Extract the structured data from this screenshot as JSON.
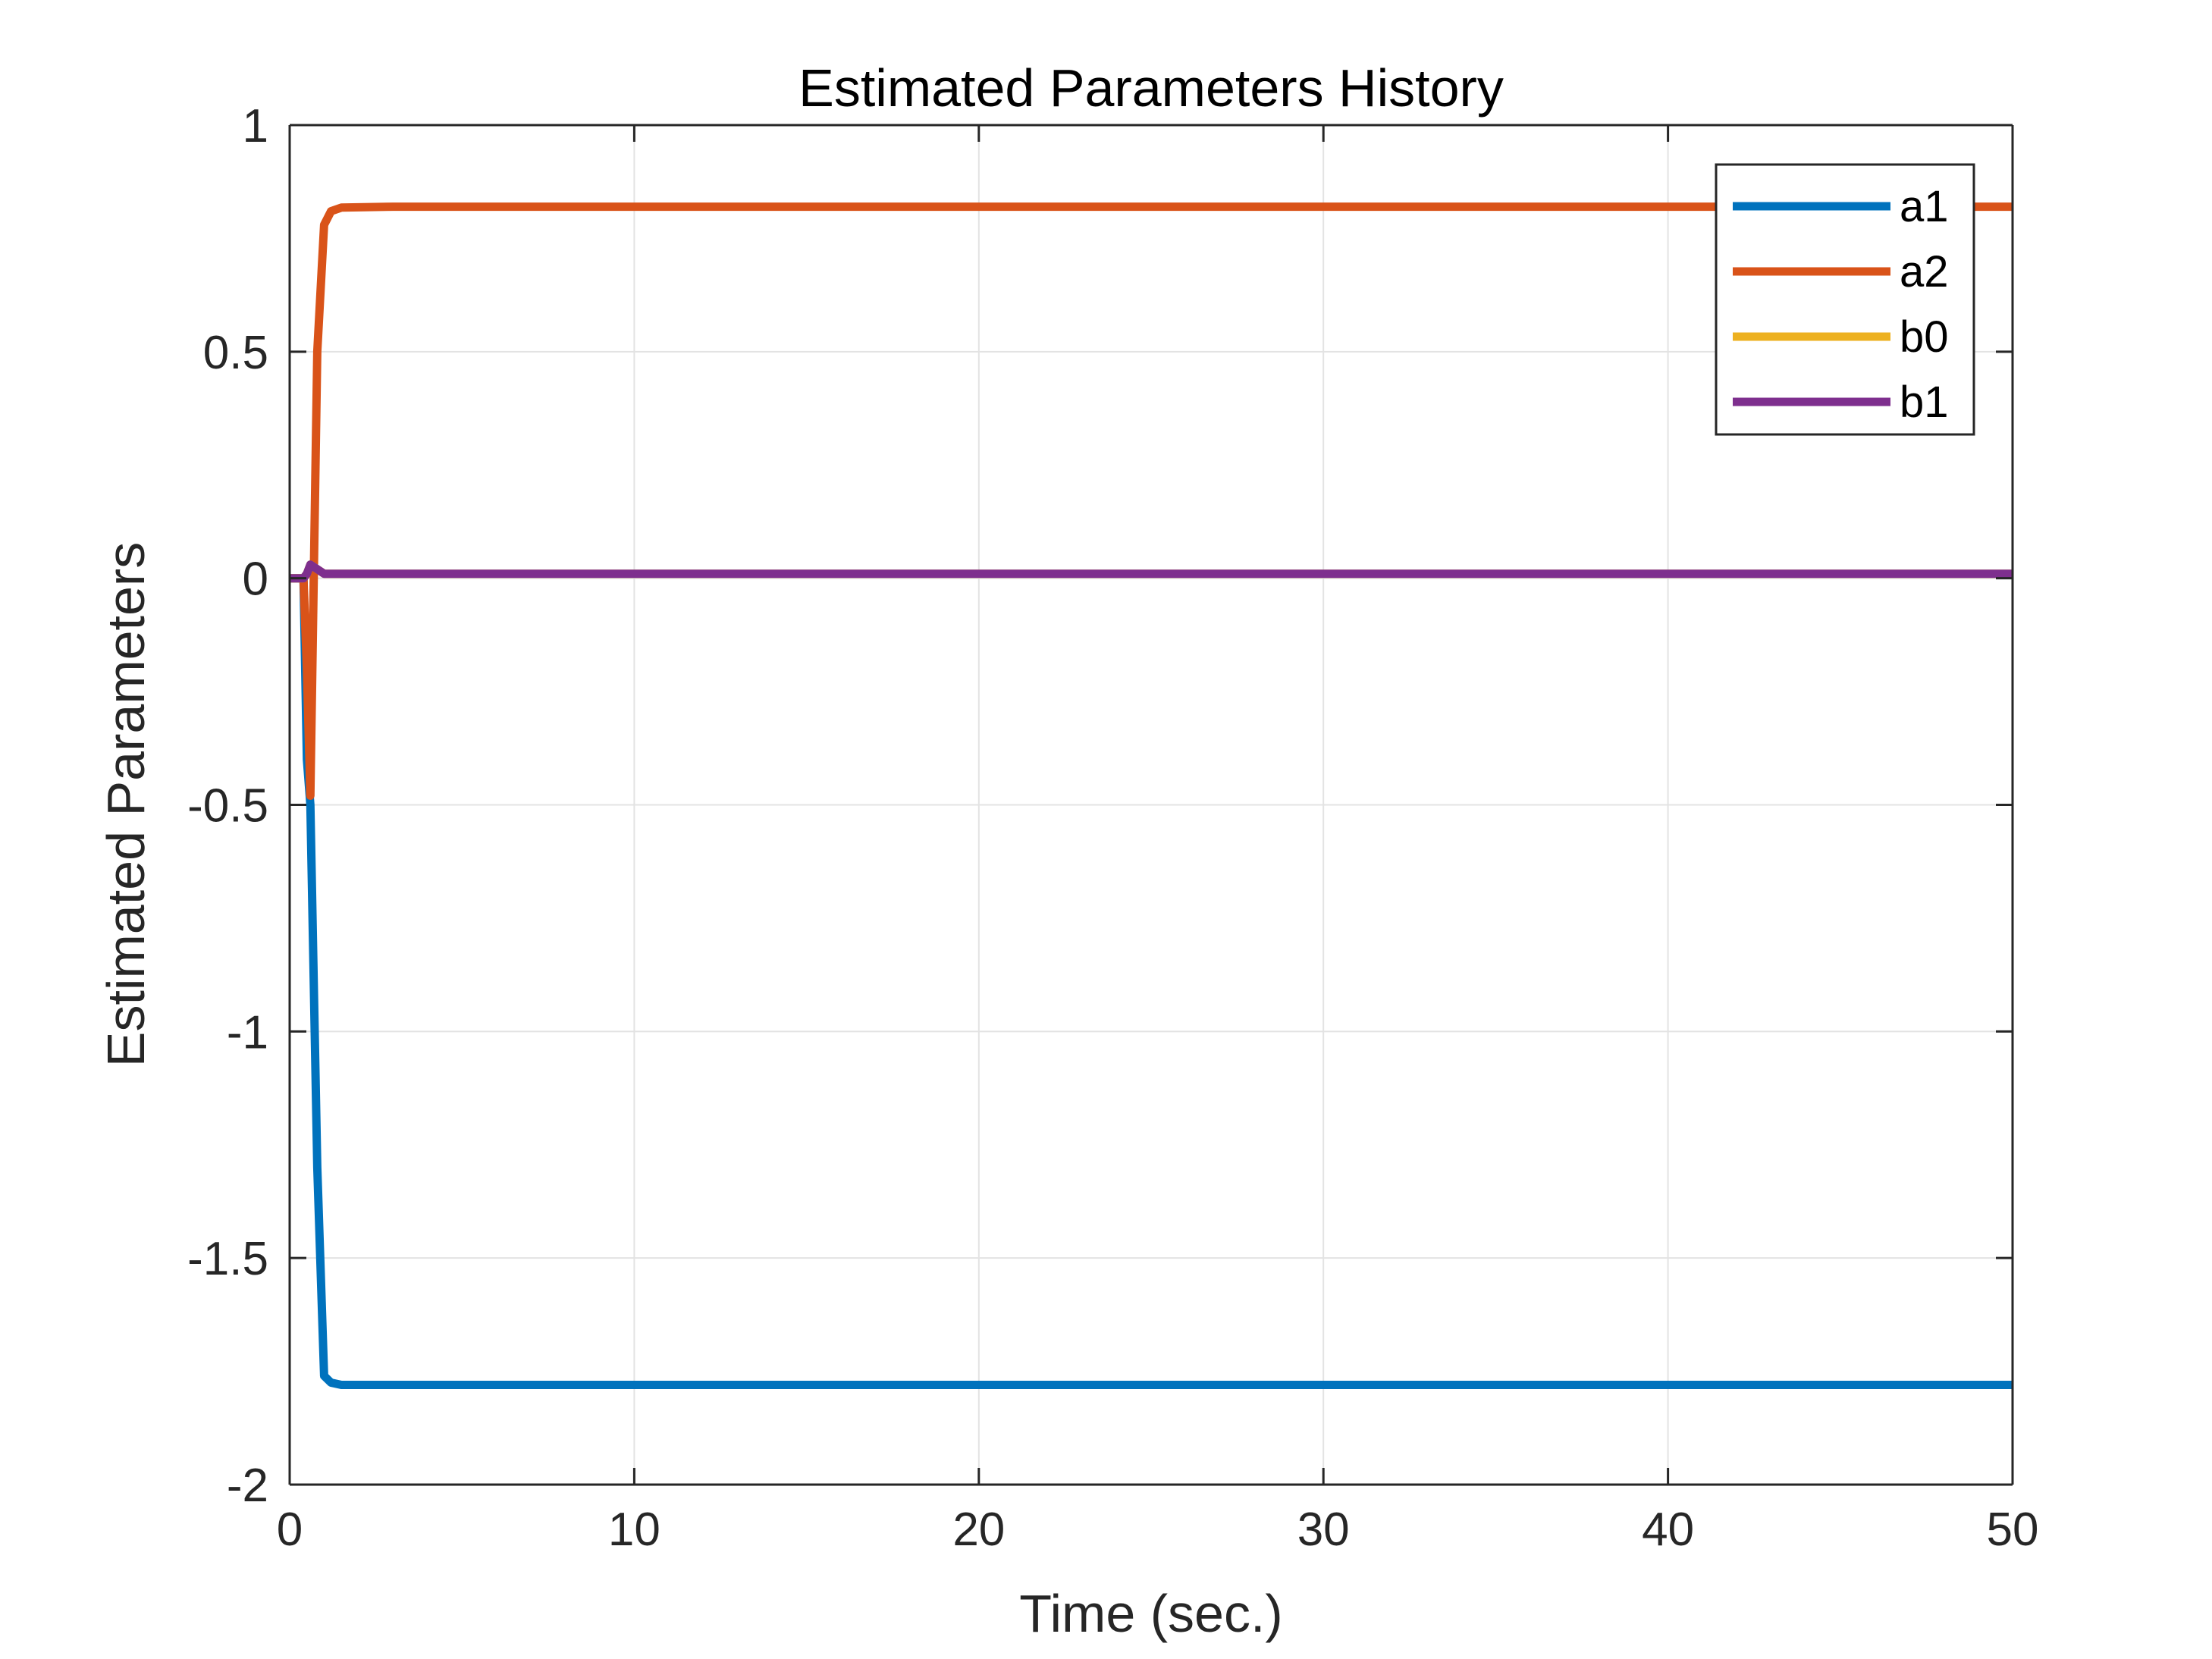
{
  "chart_data": {
    "type": "line",
    "title": "Estimated Parameters History",
    "xlabel": "Time (sec.)",
    "ylabel": "Estimated Parameters",
    "xlim": [
      0,
      50
    ],
    "ylim": [
      -2,
      1
    ],
    "xticks": [
      0,
      10,
      20,
      30,
      40,
      50
    ],
    "xtick_labels": [
      "0",
      "10",
      "20",
      "30",
      "40",
      "50"
    ],
    "yticks": [
      -2,
      -1.5,
      -1,
      -0.5,
      0,
      0.5,
      1
    ],
    "ytick_labels": [
      "-2",
      "-1.5",
      "-1",
      "-0.5",
      "0",
      "0.5",
      "1"
    ],
    "grid": true,
    "legend_position": "top-right",
    "series": [
      {
        "name": "a1",
        "color": "#0072BD",
        "points": [
          [
            0,
            0
          ],
          [
            0.4,
            0
          ],
          [
            0.5,
            -0.4
          ],
          [
            0.6,
            -0.5
          ],
          [
            0.8,
            -1.3
          ],
          [
            1.0,
            -1.76
          ],
          [
            1.2,
            -1.775
          ],
          [
            1.5,
            -1.78
          ],
          [
            3,
            -1.78
          ],
          [
            50,
            -1.78
          ]
        ]
      },
      {
        "name": "a2",
        "color": "#D95319",
        "points": [
          [
            0,
            0
          ],
          [
            0.4,
            0
          ],
          [
            0.5,
            -0.2
          ],
          [
            0.6,
            -0.48
          ],
          [
            0.8,
            0.5
          ],
          [
            1.0,
            0.78
          ],
          [
            1.2,
            0.81
          ],
          [
            1.5,
            0.818
          ],
          [
            3,
            0.82
          ],
          [
            50,
            0.82
          ]
        ]
      },
      {
        "name": "b0",
        "color": "#EDB120",
        "points": [
          [
            0,
            0
          ],
          [
            0.4,
            0
          ],
          [
            0.5,
            0.01
          ],
          [
            0.6,
            0.03
          ],
          [
            0.8,
            0.02
          ],
          [
            1.0,
            0.01
          ],
          [
            1.5,
            0.01
          ],
          [
            50,
            0.01
          ]
        ]
      },
      {
        "name": "b1",
        "color": "#7E2F8E",
        "points": [
          [
            0,
            0
          ],
          [
            0.4,
            0
          ],
          [
            0.5,
            0.01
          ],
          [
            0.6,
            0.03
          ],
          [
            0.8,
            0.02
          ],
          [
            1.0,
            0.01
          ],
          [
            1.5,
            0.01
          ],
          [
            50,
            0.01
          ]
        ]
      }
    ]
  }
}
